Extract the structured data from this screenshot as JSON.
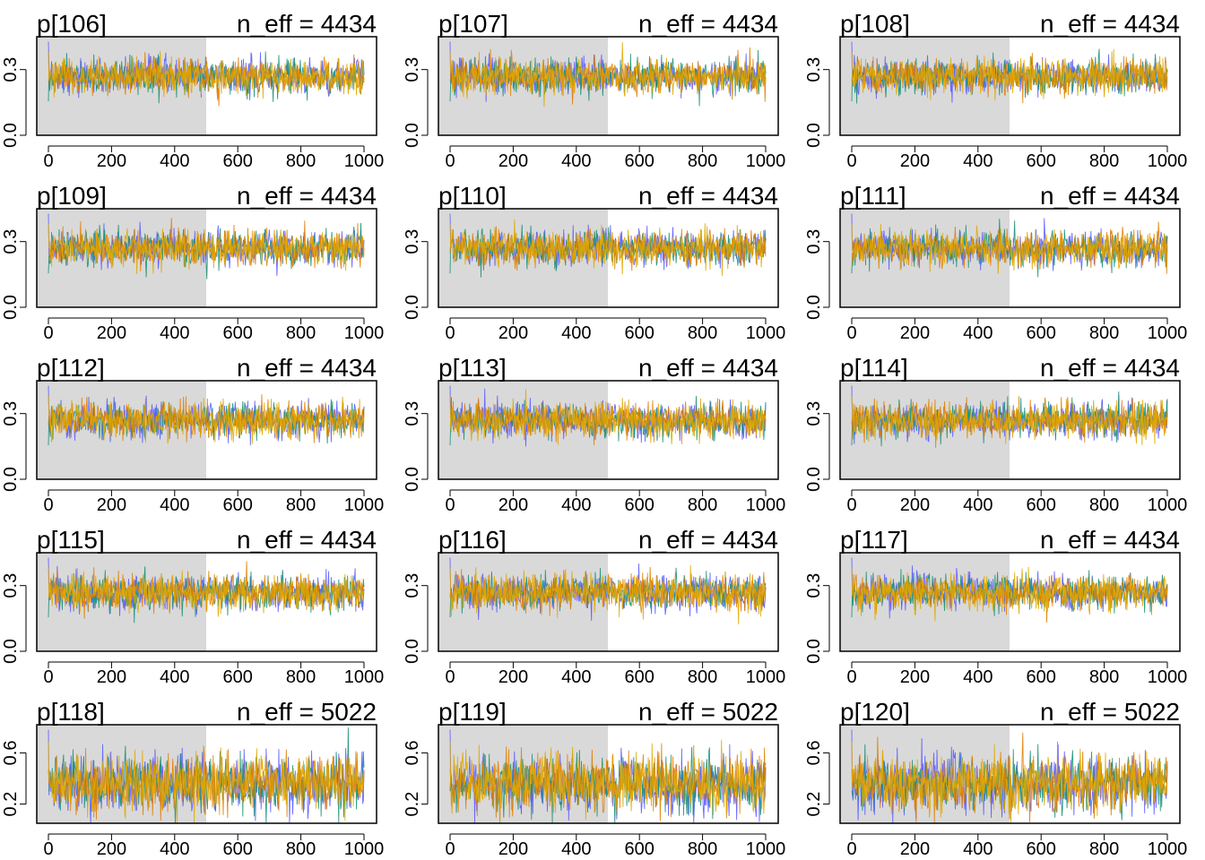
{
  "figure": {
    "type": "trace-plot-grid",
    "background": "#ffffff",
    "warmup_shade_color": "#d9d9d9",
    "chain_colors": [
      "#5b5bff",
      "#1b8f77",
      "#e07f00",
      "#e0a800"
    ]
  },
  "chart_data": [
    {
      "type": "line",
      "title": "p[106]",
      "neff_text": "n_eff = 4434",
      "xlim": [
        0,
        1000
      ],
      "warmup_end": 500,
      "ylim": [
        0.0,
        0.45
      ],
      "xticks": [
        "0",
        "200",
        "400",
        "600",
        "800",
        "1000"
      ],
      "yticks": [
        {
          "value": 0.0,
          "label": "0.0"
        },
        {
          "value": 0.3,
          "label": "0.3"
        }
      ],
      "series_summary": {
        "chains": 4,
        "iterations": 1000,
        "center": 0.27,
        "spread": 0.04
      }
    },
    {
      "type": "line",
      "title": "p[107]",
      "neff_text": "n_eff = 4434",
      "xlim": [
        0,
        1000
      ],
      "warmup_end": 500,
      "ylim": [
        0.0,
        0.45
      ],
      "xticks": [
        "0",
        "200",
        "400",
        "600",
        "800",
        "1000"
      ],
      "yticks": [
        {
          "value": 0.0,
          "label": "0.0"
        },
        {
          "value": 0.3,
          "label": "0.3"
        }
      ],
      "series_summary": {
        "chains": 4,
        "iterations": 1000,
        "center": 0.27,
        "spread": 0.04
      }
    },
    {
      "type": "line",
      "title": "p[108]",
      "neff_text": "n_eff = 4434",
      "xlim": [
        0,
        1000
      ],
      "warmup_end": 500,
      "ylim": [
        0.0,
        0.45
      ],
      "xticks": [
        "0",
        "200",
        "400",
        "600",
        "800",
        "1000"
      ],
      "yticks": [
        {
          "value": 0.0,
          "label": "0.0"
        },
        {
          "value": 0.3,
          "label": "0.3"
        }
      ],
      "series_summary": {
        "chains": 4,
        "iterations": 1000,
        "center": 0.27,
        "spread": 0.04
      }
    },
    {
      "type": "line",
      "title": "p[109]",
      "neff_text": "n_eff = 4434",
      "xlim": [
        0,
        1000
      ],
      "warmup_end": 500,
      "ylim": [
        0.0,
        0.45
      ],
      "xticks": [
        "0",
        "200",
        "400",
        "600",
        "800",
        "1000"
      ],
      "yticks": [
        {
          "value": 0.0,
          "label": "0.0"
        },
        {
          "value": 0.3,
          "label": "0.3"
        }
      ],
      "series_summary": {
        "chains": 4,
        "iterations": 1000,
        "center": 0.27,
        "spread": 0.04
      }
    },
    {
      "type": "line",
      "title": "p[110]",
      "neff_text": "n_eff = 4434",
      "xlim": [
        0,
        1000
      ],
      "warmup_end": 500,
      "ylim": [
        0.0,
        0.45
      ],
      "xticks": [
        "0",
        "200",
        "400",
        "600",
        "800",
        "1000"
      ],
      "yticks": [
        {
          "value": 0.0,
          "label": "0.0"
        },
        {
          "value": 0.3,
          "label": "0.3"
        }
      ],
      "series_summary": {
        "chains": 4,
        "iterations": 1000,
        "center": 0.27,
        "spread": 0.04
      }
    },
    {
      "type": "line",
      "title": "p[111]",
      "neff_text": "n_eff = 4434",
      "xlim": [
        0,
        1000
      ],
      "warmup_end": 500,
      "ylim": [
        0.0,
        0.45
      ],
      "xticks": [
        "0",
        "200",
        "400",
        "600",
        "800",
        "1000"
      ],
      "yticks": [
        {
          "value": 0.0,
          "label": "0.0"
        },
        {
          "value": 0.3,
          "label": "0.3"
        }
      ],
      "series_summary": {
        "chains": 4,
        "iterations": 1000,
        "center": 0.27,
        "spread": 0.04
      }
    },
    {
      "type": "line",
      "title": "p[112]",
      "neff_text": "n_eff = 4434",
      "xlim": [
        0,
        1000
      ],
      "warmup_end": 500,
      "ylim": [
        0.0,
        0.45
      ],
      "xticks": [
        "0",
        "200",
        "400",
        "600",
        "800",
        "1000"
      ],
      "yticks": [
        {
          "value": 0.0,
          "label": "0.0"
        },
        {
          "value": 0.3,
          "label": "0.3"
        }
      ],
      "series_summary": {
        "chains": 4,
        "iterations": 1000,
        "center": 0.27,
        "spread": 0.04
      }
    },
    {
      "type": "line",
      "title": "p[113]",
      "neff_text": "n_eff = 4434",
      "xlim": [
        0,
        1000
      ],
      "warmup_end": 500,
      "ylim": [
        0.0,
        0.45
      ],
      "xticks": [
        "0",
        "200",
        "400",
        "600",
        "800",
        "1000"
      ],
      "yticks": [
        {
          "value": 0.0,
          "label": "0.0"
        },
        {
          "value": 0.3,
          "label": "0.3"
        }
      ],
      "series_summary": {
        "chains": 4,
        "iterations": 1000,
        "center": 0.27,
        "spread": 0.04
      }
    },
    {
      "type": "line",
      "title": "p[114]",
      "neff_text": "n_eff = 4434",
      "xlim": [
        0,
        1000
      ],
      "warmup_end": 500,
      "ylim": [
        0.0,
        0.45
      ],
      "xticks": [
        "0",
        "200",
        "400",
        "600",
        "800",
        "1000"
      ],
      "yticks": [
        {
          "value": 0.0,
          "label": "0.0"
        },
        {
          "value": 0.3,
          "label": "0.3"
        }
      ],
      "series_summary": {
        "chains": 4,
        "iterations": 1000,
        "center": 0.27,
        "spread": 0.04
      }
    },
    {
      "type": "line",
      "title": "p[115]",
      "neff_text": "n_eff = 4434",
      "xlim": [
        0,
        1000
      ],
      "warmup_end": 500,
      "ylim": [
        0.0,
        0.45
      ],
      "xticks": [
        "0",
        "200",
        "400",
        "600",
        "800",
        "1000"
      ],
      "yticks": [
        {
          "value": 0.0,
          "label": "0.0"
        },
        {
          "value": 0.3,
          "label": "0.3"
        }
      ],
      "series_summary": {
        "chains": 4,
        "iterations": 1000,
        "center": 0.27,
        "spread": 0.04
      }
    },
    {
      "type": "line",
      "title": "p[116]",
      "neff_text": "n_eff = 4434",
      "xlim": [
        0,
        1000
      ],
      "warmup_end": 500,
      "ylim": [
        0.0,
        0.45
      ],
      "xticks": [
        "0",
        "200",
        "400",
        "600",
        "800",
        "1000"
      ],
      "yticks": [
        {
          "value": 0.0,
          "label": "0.0"
        },
        {
          "value": 0.3,
          "label": "0.3"
        }
      ],
      "series_summary": {
        "chains": 4,
        "iterations": 1000,
        "center": 0.27,
        "spread": 0.04
      }
    },
    {
      "type": "line",
      "title": "p[117]",
      "neff_text": "n_eff = 4434",
      "xlim": [
        0,
        1000
      ],
      "warmup_end": 500,
      "ylim": [
        0.0,
        0.45
      ],
      "xticks": [
        "0",
        "200",
        "400",
        "600",
        "800",
        "1000"
      ],
      "yticks": [
        {
          "value": 0.0,
          "label": "0.0"
        },
        {
          "value": 0.3,
          "label": "0.3"
        }
      ],
      "series_summary": {
        "chains": 4,
        "iterations": 1000,
        "center": 0.27,
        "spread": 0.04
      }
    },
    {
      "type": "line",
      "title": "p[118]",
      "neff_text": "n_eff = 5022",
      "xlim": [
        0,
        1000
      ],
      "warmup_end": 500,
      "ylim": [
        0.05,
        0.82
      ],
      "xticks": [
        "0",
        "200",
        "400",
        "600",
        "800",
        "1000"
      ],
      "yticks": [
        {
          "value": 0.2,
          "label": "0.2"
        },
        {
          "value": 0.6,
          "label": "0.6"
        }
      ],
      "series_summary": {
        "chains": 4,
        "iterations": 1000,
        "center": 0.36,
        "spread": 0.11
      }
    },
    {
      "type": "line",
      "title": "p[119]",
      "neff_text": "n_eff = 5022",
      "xlim": [
        0,
        1000
      ],
      "warmup_end": 500,
      "ylim": [
        0.05,
        0.82
      ],
      "xticks": [
        "0",
        "200",
        "400",
        "600",
        "800",
        "1000"
      ],
      "yticks": [
        {
          "value": 0.2,
          "label": "0.2"
        },
        {
          "value": 0.6,
          "label": "0.6"
        }
      ],
      "series_summary": {
        "chains": 4,
        "iterations": 1000,
        "center": 0.36,
        "spread": 0.11
      }
    },
    {
      "type": "line",
      "title": "p[120]",
      "neff_text": "n_eff = 5022",
      "xlim": [
        0,
        1000
      ],
      "warmup_end": 500,
      "ylim": [
        0.05,
        0.82
      ],
      "xticks": [
        "0",
        "200",
        "400",
        "600",
        "800",
        "1000"
      ],
      "yticks": [
        {
          "value": 0.2,
          "label": "0.2"
        },
        {
          "value": 0.6,
          "label": "0.6"
        }
      ],
      "series_summary": {
        "chains": 4,
        "iterations": 1000,
        "center": 0.36,
        "spread": 0.11
      }
    }
  ]
}
